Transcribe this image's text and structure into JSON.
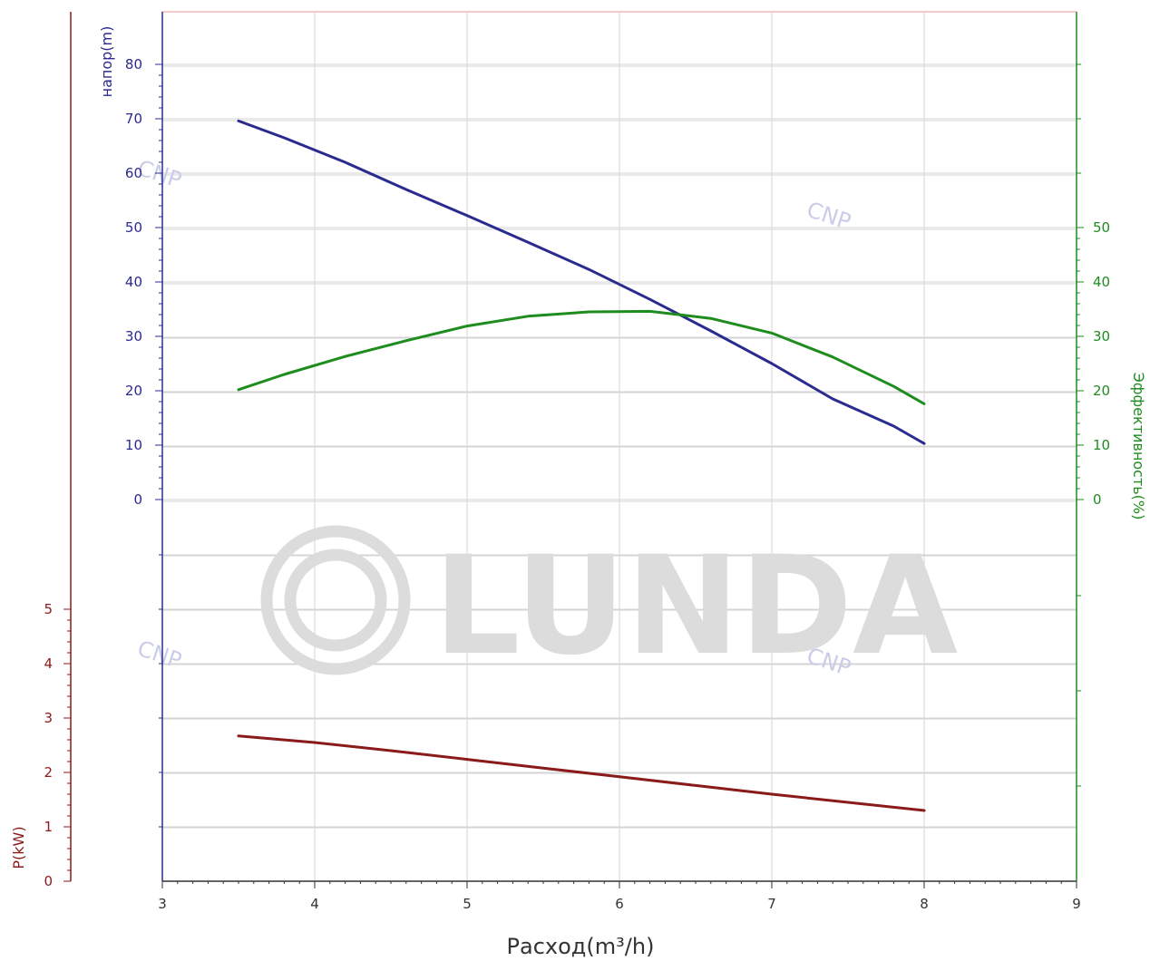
{
  "chart_data": {
    "type": "line",
    "x_axis": {
      "label": "Расход(m³/h)",
      "range": [
        3,
        9
      ],
      "ticks": [
        "3",
        "4",
        "5",
        "6",
        "7",
        "8",
        "9"
      ]
    },
    "head_axis": {
      "label": "напор(m)",
      "range": [
        0,
        80
      ],
      "ticks": [
        "0",
        "10",
        "20",
        "30",
        "40",
        "50",
        "60",
        "70",
        "80"
      ]
    },
    "efficiency_axis": {
      "label": "Эффективность(%)",
      "range": [
        0,
        50
      ],
      "ticks": [
        "0",
        "10",
        "20",
        "30",
        "40",
        "50"
      ]
    },
    "power_axis": {
      "label": "P(kW)",
      "range": [
        0,
        5
      ],
      "ticks": [
        "0",
        "1",
        "2",
        "3",
        "4",
        "5"
      ]
    },
    "grid": true,
    "series": [
      {
        "name": "напор(m)",
        "axis": "head",
        "color": "#2b2b8f",
        "x": [
          3.5,
          3.8,
          4.2,
          4.6,
          5.0,
          5.4,
          5.8,
          6.2,
          6.6,
          7.0,
          7.4,
          7.8,
          8.0
        ],
        "y": [
          69.6,
          66.5,
          62.0,
          57.0,
          52.2,
          47.3,
          42.3,
          36.8,
          31.0,
          25.0,
          18.5,
          13.5,
          10.3
        ]
      },
      {
        "name": "Эффективность(%)",
        "axis": "efficiency",
        "color": "#1e8c1e",
        "x": [
          3.5,
          3.8,
          4.2,
          4.6,
          5.0,
          5.4,
          5.8,
          6.2,
          6.6,
          7.0,
          7.4,
          7.8,
          8.0
        ],
        "y": [
          20.2,
          23.0,
          26.3,
          29.2,
          31.9,
          33.7,
          34.5,
          34.6,
          33.3,
          30.6,
          26.2,
          20.8,
          17.6
        ]
      },
      {
        "name": "P(kW)",
        "axis": "power",
        "color": "#8b1a1a",
        "x": [
          3.5,
          4.0,
          4.5,
          5.0,
          5.5,
          6.0,
          6.5,
          7.0,
          7.5,
          8.0
        ],
        "y": [
          2.67,
          2.55,
          2.4,
          2.24,
          2.08,
          1.92,
          1.76,
          1.6,
          1.45,
          1.3
        ]
      }
    ],
    "watermarks": [
      "CNP",
      "LUNDA"
    ]
  }
}
